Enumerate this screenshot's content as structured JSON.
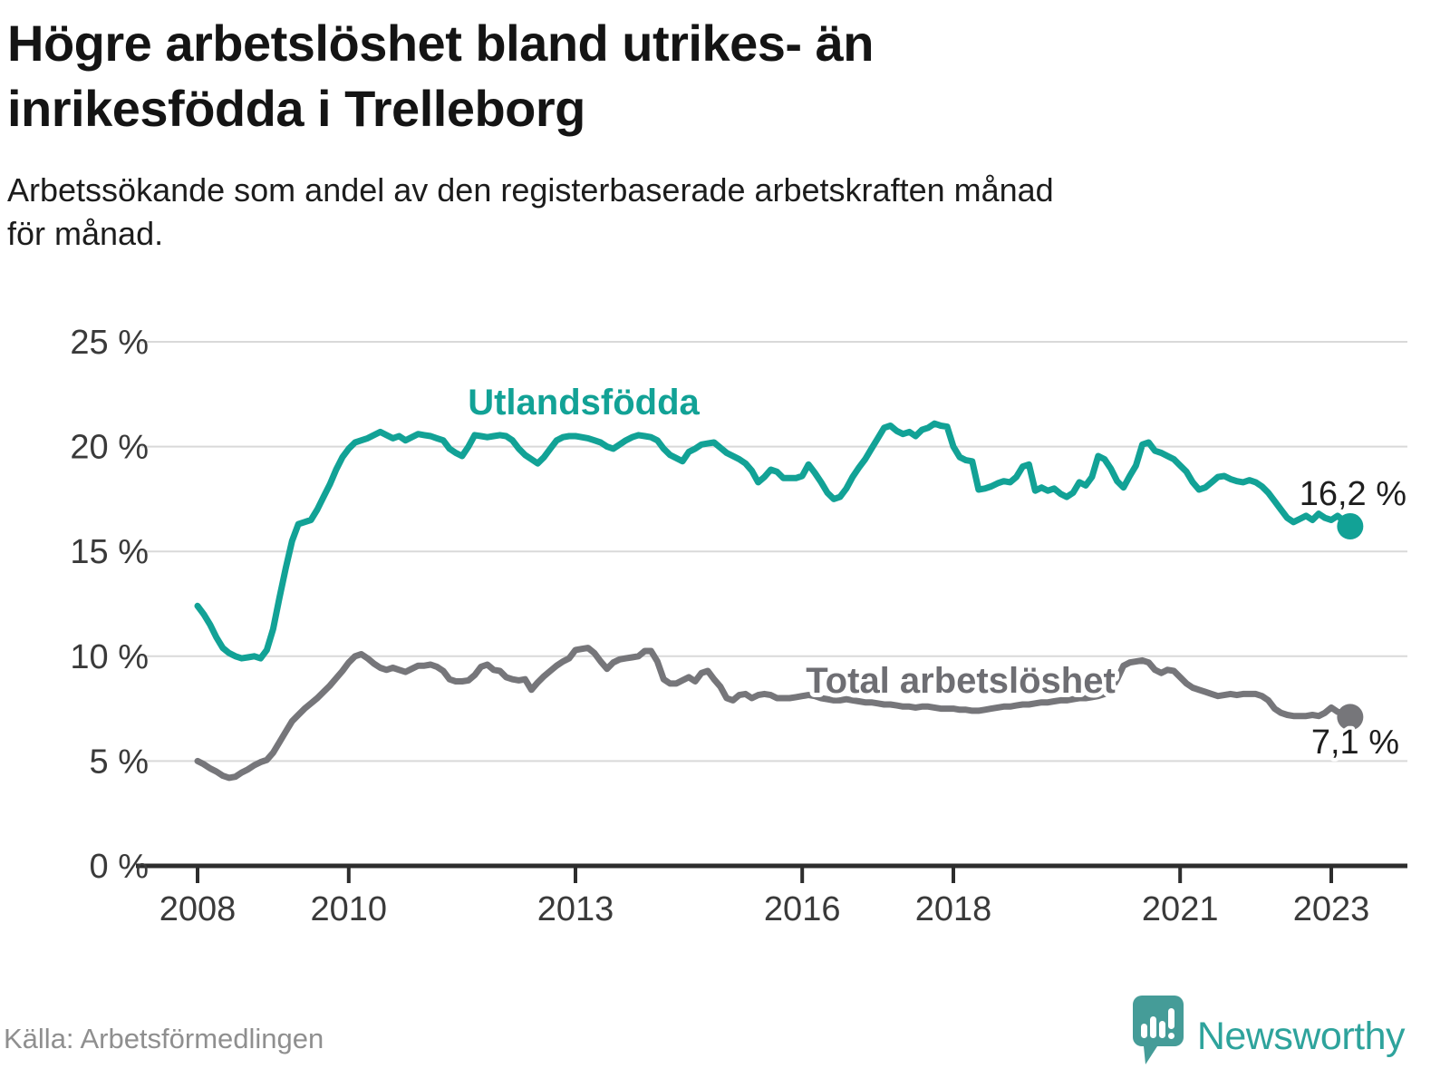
{
  "title": "Högre arbetslöshet bland utrikes- än\ninrikesfödda i Trelleborg",
  "subtitle": "Arbetssökande som andel av den registerbaserade arbetskraften månad\nför månad.",
  "source": "Källa: Arbetsförmedlingen",
  "brand": {
    "name": "Newsworthy"
  },
  "colors": {
    "teal": "#12a296",
    "gray": "#76767a",
    "gray_label": "#6e6e73",
    "grid": "#d9d9d9",
    "axis": "#2d2d2d",
    "tick_label": "#3a3a3a",
    "source_text": "#8f8f8f",
    "brand_text": "#2ea39c",
    "brand_icon": "#459c98"
  },
  "chart_data": {
    "type": "line",
    "title": "Högre arbetslöshet bland utrikes- än inrikesfödda i Trelleborg",
    "subtitle": "Arbetssökande som andel av den registerbaserade arbetskraften månad för månad.",
    "x_start": "2008-01",
    "x_end": "2023-04",
    "x_interval": "month",
    "x_ticks": [
      2008,
      2010,
      2013,
      2016,
      2018,
      2021,
      2023
    ],
    "y_ticks": [
      "25 %",
      "20 %",
      "15 %",
      "10 %",
      "5 %",
      "0 %"
    ],
    "y_tick_values": [
      25,
      20,
      15,
      10,
      5,
      0
    ],
    "ylim": [
      0,
      25
    ],
    "grid": true,
    "legend_position": "inline-labels",
    "series": [
      {
        "name": "Utlandsfödda",
        "color": "#12a296",
        "end_label": "16,2 %",
        "end_value": 16.2,
        "values": [
          12.4,
          12.0,
          11.5,
          10.9,
          10.4,
          10.15,
          10.0,
          9.9,
          9.95,
          10.0,
          9.9,
          10.3,
          11.3,
          12.8,
          14.2,
          15.5,
          16.3,
          16.4,
          16.5,
          17.0,
          17.6,
          18.2,
          18.9,
          19.5,
          19.9,
          20.2,
          20.3,
          20.4,
          20.55,
          20.7,
          20.55,
          20.4,
          20.5,
          20.3,
          20.45,
          20.6,
          20.55,
          20.5,
          20.4,
          20.3,
          19.9,
          19.7,
          19.55,
          20.0,
          20.55,
          20.5,
          20.45,
          20.5,
          20.55,
          20.5,
          20.3,
          19.9,
          19.6,
          19.4,
          19.2,
          19.5,
          19.9,
          20.3,
          20.45,
          20.5,
          20.5,
          20.45,
          20.4,
          20.3,
          20.2,
          20.0,
          19.9,
          20.1,
          20.3,
          20.45,
          20.55,
          20.5,
          20.45,
          20.3,
          19.9,
          19.6,
          19.45,
          19.3,
          19.75,
          19.9,
          20.1,
          20.15,
          20.2,
          19.95,
          19.7,
          19.55,
          19.4,
          19.2,
          18.85,
          18.3,
          18.55,
          18.9,
          18.8,
          18.5,
          18.5,
          18.5,
          18.6,
          19.15,
          18.75,
          18.3,
          17.8,
          17.5,
          17.6,
          18.0,
          18.55,
          19.0,
          19.4,
          19.9,
          20.4,
          20.9,
          21.0,
          20.75,
          20.6,
          20.7,
          20.5,
          20.8,
          20.9,
          21.1,
          21.0,
          20.95,
          20.0,
          19.5,
          19.35,
          19.3,
          17.95,
          18.0,
          18.1,
          18.25,
          18.35,
          18.3,
          18.55,
          19.05,
          19.15,
          17.9,
          18.05,
          17.9,
          18.0,
          17.75,
          17.6,
          17.8,
          18.3,
          18.15,
          18.55,
          19.55,
          19.4,
          18.95,
          18.35,
          18.05,
          18.6,
          19.1,
          20.1,
          20.2,
          19.8,
          19.7,
          19.55,
          19.4,
          19.1,
          18.8,
          18.3,
          17.95,
          18.05,
          18.3,
          18.55,
          18.6,
          18.45,
          18.35,
          18.3,
          18.4,
          18.3,
          18.1,
          17.8,
          17.4,
          17.0,
          16.6,
          16.4,
          16.55,
          16.7,
          16.5,
          16.8,
          16.6,
          16.5,
          16.7,
          16.45,
          16.2
        ]
      },
      {
        "name": "Total arbetslöshet",
        "color": "#76767a",
        "end_label": "7,1 %",
        "end_value": 7.1,
        "values": [
          5.0,
          4.85,
          4.65,
          4.5,
          4.3,
          4.2,
          4.25,
          4.45,
          4.6,
          4.8,
          4.95,
          5.05,
          5.4,
          5.9,
          6.4,
          6.9,
          7.2,
          7.5,
          7.75,
          8.0,
          8.3,
          8.6,
          8.95,
          9.3,
          9.7,
          10.0,
          10.1,
          9.9,
          9.65,
          9.45,
          9.35,
          9.45,
          9.35,
          9.25,
          9.4,
          9.55,
          9.55,
          9.6,
          9.5,
          9.3,
          8.9,
          8.8,
          8.8,
          8.85,
          9.1,
          9.5,
          9.6,
          9.35,
          9.3,
          9.0,
          8.9,
          8.85,
          8.9,
          8.4,
          8.75,
          9.05,
          9.3,
          9.55,
          9.75,
          9.9,
          10.3,
          10.35,
          10.4,
          10.15,
          9.75,
          9.4,
          9.7,
          9.85,
          9.9,
          9.95,
          10.0,
          10.25,
          10.25,
          9.75,
          8.9,
          8.7,
          8.7,
          8.85,
          9.0,
          8.8,
          9.2,
          9.3,
          8.9,
          8.55,
          8.0,
          7.9,
          8.15,
          8.2,
          8.0,
          8.15,
          8.2,
          8.15,
          8.0,
          8.0,
          8.0,
          8.05,
          8.1,
          8.15,
          8.1,
          8.0,
          7.95,
          7.9,
          7.9,
          7.95,
          7.9,
          7.85,
          7.8,
          7.8,
          7.75,
          7.7,
          7.7,
          7.65,
          7.6,
          7.6,
          7.55,
          7.6,
          7.6,
          7.55,
          7.5,
          7.5,
          7.5,
          7.45,
          7.45,
          7.4,
          7.4,
          7.45,
          7.5,
          7.55,
          7.6,
          7.6,
          7.65,
          7.7,
          7.7,
          7.75,
          7.8,
          7.8,
          7.85,
          7.9,
          7.9,
          7.95,
          8.0,
          8.0,
          8.05,
          8.1,
          8.2,
          8.4,
          8.9,
          9.55,
          9.7,
          9.75,
          9.8,
          9.7,
          9.35,
          9.2,
          9.35,
          9.3,
          9.0,
          8.7,
          8.5,
          8.4,
          8.3,
          8.2,
          8.1,
          8.15,
          8.2,
          8.15,
          8.2,
          8.2,
          8.2,
          8.1,
          7.9,
          7.5,
          7.3,
          7.2,
          7.15,
          7.15,
          7.15,
          7.2,
          7.15,
          7.3,
          7.55,
          7.35,
          7.25,
          7.1
        ]
      }
    ]
  }
}
